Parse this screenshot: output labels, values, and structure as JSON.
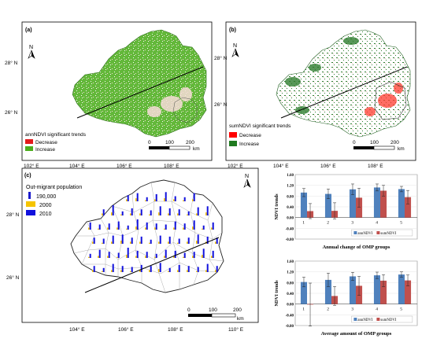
{
  "panels": {
    "a": {
      "label": "(a)",
      "lat_labels": [
        "28° N",
        "26° N"
      ],
      "lon_labels": [
        "102° E",
        "104° E",
        "106° E",
        "108° E"
      ],
      "legend": {
        "title": "annNDVI significant trends",
        "items": [
          {
            "label": "Decrease",
            "color": "#e31a1c"
          },
          {
            "label": "Increase",
            "color": "#4cae1e"
          }
        ]
      },
      "scale": {
        "ticks": [
          "0",
          "100",
          "200"
        ],
        "unit": "km"
      }
    },
    "b": {
      "label": "(b)",
      "lat_labels": [
        "28° N",
        "26° N"
      ],
      "lon_labels": [
        "102° E",
        "104° E",
        "106° E",
        "108° E"
      ],
      "legend": {
        "title": "sumNDVI significant trends",
        "items": [
          {
            "label": "Decrease",
            "color": "#ff0000"
          },
          {
            "label": "Increase",
            "color": "#1f7a1f"
          }
        ]
      },
      "scale": {
        "ticks": [
          "0",
          "100",
          "200"
        ],
        "unit": "km"
      }
    },
    "c": {
      "label": "(c)",
      "lat_labels": [
        "28° N",
        "26° N"
      ],
      "lon_labels": [
        "104° E",
        "106° E",
        "108° E",
        "110° E"
      ],
      "legend": {
        "title": "Out-migrant population",
        "items": [
          {
            "label": "190,000",
            "color": "#1a1acc"
          },
          {
            "label": "2000",
            "color": "#f5c400"
          },
          {
            "label": "2010",
            "color": "#1010dd"
          }
        ]
      },
      "scale": {
        "ticks": [
          "0",
          "100",
          "200"
        ],
        "unit": "km"
      }
    }
  },
  "north_symbol": "N",
  "chart_data": [
    {
      "type": "bar",
      "categories": [
        "1",
        "2",
        "3",
        "4",
        "5"
      ],
      "series": [
        {
          "name": "annNDVI",
          "color": "#4f81bd",
          "values": [
            0.93,
            0.88,
            1.05,
            1.12,
            1.06
          ],
          "errors": [
            0.15,
            0.18,
            0.2,
            0.13,
            0.1
          ]
        },
        {
          "name": "sumNDVI",
          "color": "#c0504d",
          "values": [
            0.24,
            0.25,
            0.74,
            1.0,
            0.76
          ],
          "errors": [
            0.28,
            0.3,
            0.35,
            0.2,
            0.25
          ]
        }
      ],
      "ylabel": "NDVI trends",
      "xlabel": "Annual change of OMP groups",
      "ylim": [
        -0.8,
        1.6
      ],
      "yticks": [
        "1.60",
        "1.20",
        "0.80",
        "0.40",
        "0.00",
        "-0.40",
        "-0.80"
      ],
      "legend": "bottom-right"
    },
    {
      "type": "bar",
      "categories": [
        "1",
        "2",
        "3",
        "4",
        "5"
      ],
      "series": [
        {
          "name": "annNDVI",
          "color": "#4f81bd",
          "values": [
            0.82,
            0.9,
            1.03,
            1.07,
            1.1
          ],
          "errors": [
            0.18,
            0.25,
            0.15,
            0.12,
            0.1
          ]
        },
        {
          "name": "sumNDVI",
          "color": "#c0504d",
          "values": [
            -0.02,
            0.3,
            0.68,
            0.87,
            0.88
          ],
          "errors": [
            0.8,
            0.35,
            0.35,
            0.22,
            0.2
          ]
        }
      ],
      "ylabel": "NDVI trends",
      "xlabel": "Average amount of OMP groups",
      "ylim": [
        -0.8,
        1.6
      ],
      "yticks": [
        "1.60",
        "1.20",
        "0.80",
        "0.40",
        "0.00",
        "-0.40",
        "-0.80"
      ],
      "legend": "bottom-right"
    }
  ],
  "migrant_bars": {
    "values_2000": [
      2,
      3,
      1,
      2,
      3,
      2,
      1,
      2,
      2,
      3,
      1,
      2,
      2,
      1,
      3,
      2,
      2,
      1,
      2,
      3,
      2,
      1,
      2,
      2,
      1,
      3,
      2,
      2,
      1,
      2,
      2,
      3,
      1,
      2,
      2,
      1,
      2,
      3,
      2,
      2,
      1,
      2,
      2,
      1,
      2,
      3,
      2,
      2,
      1,
      2,
      2,
      1,
      3,
      2,
      2,
      1,
      2,
      2,
      1,
      2,
      3,
      2,
      2,
      1,
      2,
      2,
      1,
      2,
      2,
      3,
      1,
      2,
      2,
      1,
      2,
      2
    ],
    "values_2010": [
      6,
      8,
      4,
      7,
      9,
      5,
      4,
      8,
      6,
      10,
      4,
      7,
      6,
      5,
      9,
      7,
      6,
      4,
      8,
      9,
      7,
      5,
      6,
      8,
      4,
      10,
      7,
      6,
      5,
      8,
      6,
      9,
      4,
      7,
      6,
      5,
      8,
      9,
      6,
      7,
      4,
      8,
      7,
      5,
      6,
      9,
      7,
      6,
      4,
      8,
      6,
      5,
      10,
      7,
      6,
      4,
      8,
      7,
      5,
      6,
      9,
      7,
      6,
      4,
      8,
      6,
      5,
      7,
      6,
      9,
      4,
      7,
      6,
      5,
      8,
      6
    ]
  }
}
